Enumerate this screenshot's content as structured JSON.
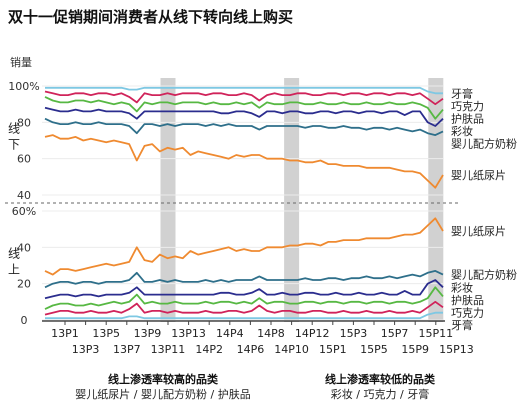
{
  "chart_data": {
    "type": "line",
    "title": "双十一促销期间消费者从线下转向线上购买",
    "ylabel": "销量",
    "x_ticks_row1": [
      "13P1",
      "13P5",
      "13P9",
      "13P13",
      "14P4",
      "14P8",
      "14P12",
      "15P3",
      "15P7",
      "15P11"
    ],
    "x_ticks_row2": [
      "13P3",
      "13P7",
      "13P11",
      "14P2",
      "14P6",
      "14P10",
      "15P1",
      "15P5",
      "15P9",
      "15P13"
    ],
    "shaded_periods": [
      "13P11",
      "14P10",
      "15P11"
    ],
    "panels": [
      {
        "label": "线下",
        "ylim": [
          40,
          100
        ],
        "yticks": [
          "100%",
          "80",
          "60",
          "40"
        ],
        "series": [
          {
            "name": "牙膏",
            "color": "#7ec8e3",
            "values": [
              99,
              99,
              99,
              99,
              99,
              99,
              99,
              99,
              99,
              99,
              99,
              98,
              98,
              99,
              99,
              99,
              99,
              99,
              99,
              99,
              99,
              99,
              99,
              99,
              99,
              99,
              99,
              99,
              99,
              99,
              99,
              99,
              99,
              99,
              99,
              99,
              99,
              99,
              99,
              99,
              99,
              99,
              99,
              99,
              99,
              99,
              99,
              99,
              99,
              99,
              97,
              96,
              96
            ]
          },
          {
            "name": "巧克力",
            "color": "#d0235a",
            "values": [
              97,
              96,
              95,
              95,
              96,
              96,
              95,
              96,
              96,
              95,
              96,
              94,
              91,
              96,
              95,
              95,
              96,
              95,
              96,
              96,
              96,
              95,
              96,
              96,
              95,
              95,
              96,
              95,
              92,
              95,
              96,
              95,
              95,
              96,
              96,
              95,
              95,
              96,
              96,
              95,
              96,
              96,
              95,
              96,
              96,
              95,
              96,
              96,
              95,
              96,
              93,
              90,
              93
            ]
          },
          {
            "name": "护肤品",
            "color": "#57b843",
            "values": [
              94,
              92,
              91,
              91,
              92,
              92,
              91,
              92,
              91,
              90,
              91,
              90,
              86,
              91,
              90,
              91,
              91,
              90,
              91,
              91,
              91,
              90,
              91,
              90,
              90,
              91,
              90,
              91,
              88,
              91,
              90,
              90,
              91,
              91,
              90,
              90,
              91,
              90,
              90,
              91,
              90,
              90,
              91,
              90,
              90,
              91,
              90,
              90,
              91,
              90,
              88,
              82,
              87
            ]
          },
          {
            "name": "彩妆",
            "color": "#2b2d8e",
            "values": [
              88,
              87,
              86,
              86,
              87,
              86,
              86,
              87,
              86,
              86,
              86,
              85,
              82,
              86,
              86,
              86,
              86,
              86,
              86,
              86,
              86,
              86,
              86,
              85,
              85,
              86,
              86,
              85,
              83,
              86,
              86,
              85,
              86,
              86,
              85,
              85,
              86,
              86,
              85,
              86,
              86,
              85,
              86,
              86,
              85,
              86,
              86,
              84,
              86,
              86,
              80,
              78,
              82
            ]
          },
          {
            "name": "婴儿配方奶粉",
            "color": "#2e6f8a",
            "values": [
              82,
              80,
              79,
              79,
              80,
              79,
              79,
              80,
              79,
              79,
              79,
              78,
              74,
              79,
              79,
              78,
              79,
              78,
              79,
              79,
              79,
              78,
              79,
              78,
              79,
              78,
              78,
              78,
              76,
              78,
              78,
              78,
              78,
              78,
              77,
              78,
              78,
              77,
              77,
              78,
              77,
              77,
              76,
              77,
              77,
              76,
              77,
              76,
              75,
              76,
              74,
              73,
              75
            ]
          },
          {
            "name": "婴儿纸尿片",
            "color": "#ef8a30",
            "values": [
              72,
              73,
              71,
              71,
              72,
              70,
              71,
              70,
              69,
              70,
              69,
              68,
              59,
              67,
              68,
              64,
              66,
              65,
              66,
              62,
              64,
              63,
              62,
              61,
              60,
              62,
              61,
              62,
              62,
              60,
              60,
              60,
              59,
              59,
              58,
              58,
              59,
              57,
              57,
              56,
              56,
              56,
              55,
              55,
              55,
              55,
              54,
              53,
              53,
              52,
              48,
              44,
              51
            ]
          }
        ]
      },
      {
        "label": "线上",
        "ylim": [
          0,
          60
        ],
        "yticks": [
          "60%",
          "40",
          "20",
          "0"
        ],
        "series": [
          {
            "name": "婴儿纸尿片",
            "color": "#ef8a30",
            "values": [
              27,
              25,
              28,
              28,
              27,
              28,
              29,
              30,
              31,
              30,
              31,
              32,
              40,
              33,
              32,
              36,
              34,
              35,
              34,
              38,
              36,
              37,
              38,
              39,
              40,
              38,
              39,
              38,
              38,
              40,
              40,
              40,
              41,
              41,
              42,
              42,
              41,
              43,
              43,
              44,
              44,
              44,
              45,
              45,
              45,
              45,
              46,
              47,
              47,
              48,
              52,
              56,
              49
            ]
          },
          {
            "name": "婴儿配方奶粉",
            "color": "#2e6f8a",
            "values": [
              18,
              20,
              21,
              21,
              20,
              21,
              21,
              20,
              21,
              21,
              21,
              22,
              26,
              21,
              21,
              22,
              21,
              22,
              21,
              21,
              21,
              22,
              21,
              22,
              21,
              22,
              22,
              22,
              24,
              22,
              22,
              22,
              22,
              22,
              23,
              22,
              22,
              23,
              23,
              22,
              23,
              23,
              24,
              23,
              23,
              24,
              23,
              24,
              25,
              24,
              26,
              27,
              25
            ]
          },
          {
            "name": "彩妆",
            "color": "#2b2d8e",
            "values": [
              12,
              13,
              14,
              14,
              13,
              14,
              14,
              13,
              14,
              14,
              14,
              15,
              18,
              14,
              14,
              14,
              14,
              14,
              14,
              14,
              14,
              14,
              14,
              15,
              15,
              14,
              14,
              15,
              17,
              14,
              14,
              15,
              14,
              14,
              15,
              15,
              14,
              14,
              15,
              14,
              14,
              15,
              14,
              14,
              15,
              14,
              14,
              16,
              14,
              14,
              20,
              22,
              18
            ]
          },
          {
            "name": "护肤品",
            "color": "#57b843",
            "values": [
              6,
              8,
              9,
              9,
              8,
              8,
              9,
              8,
              9,
              10,
              9,
              10,
              14,
              9,
              10,
              9,
              9,
              10,
              9,
              9,
              9,
              10,
              9,
              10,
              10,
              9,
              10,
              9,
              12,
              9,
              10,
              10,
              9,
              9,
              10,
              10,
              9,
              10,
              10,
              9,
              10,
              10,
              9,
              10,
              10,
              9,
              10,
              10,
              9,
              10,
              12,
              18,
              13
            ]
          },
          {
            "name": "巧克力",
            "color": "#d0235a",
            "values": [
              3,
              4,
              5,
              5,
              4,
              4,
              5,
              4,
              4,
              5,
              4,
              6,
              9,
              4,
              5,
              5,
              4,
              5,
              4,
              4,
              4,
              5,
              4,
              4,
              5,
              5,
              4,
              5,
              8,
              5,
              4,
              5,
              5,
              4,
              4,
              5,
              5,
              4,
              4,
              5,
              4,
              4,
              5,
              4,
              4,
              5,
              4,
              4,
              5,
              4,
              7,
              10,
              7
            ]
          },
          {
            "name": "牙膏",
            "color": "#7ec8e3",
            "values": [
              1,
              1,
              1,
              1,
              1,
              1,
              1,
              1,
              1,
              1,
              1,
              2,
              2,
              1,
              1,
              1,
              1,
              1,
              1,
              1,
              1,
              1,
              1,
              1,
              1,
              1,
              1,
              1,
              1,
              1,
              1,
              1,
              1,
              1,
              1,
              1,
              1,
              1,
              1,
              1,
              1,
              1,
              1,
              1,
              1,
              1,
              1,
              1,
              1,
              1,
              3,
              4,
              4
            ]
          }
        ]
      }
    ],
    "footer": {
      "left": {
        "heading": "线上渗透率较高的品类",
        "items": "婴儿纸尿片 / 婴儿配方奶粉 / 护肤品"
      },
      "right": {
        "heading": "线上渗透率较低的品类",
        "items": "彩妆 / 巧克力 / 牙膏"
      }
    }
  }
}
